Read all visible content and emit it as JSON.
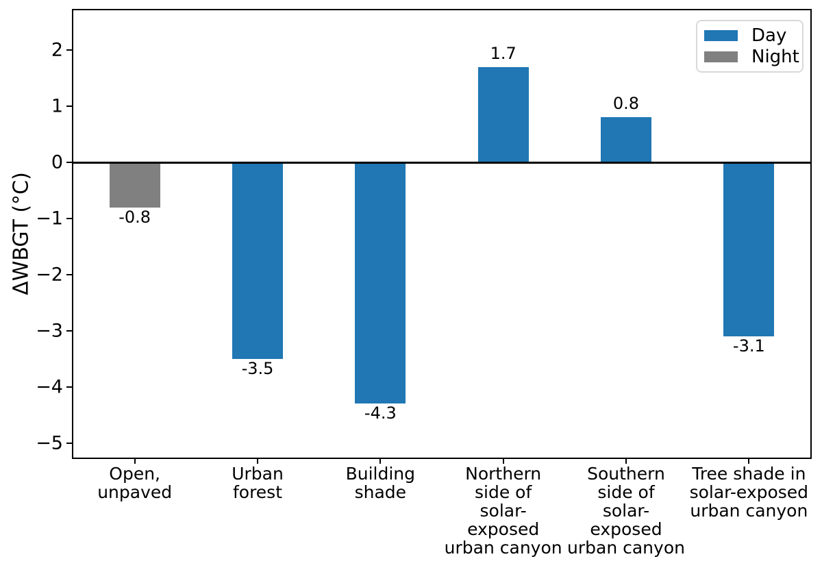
{
  "chart_data": {
    "type": "bar",
    "title": "",
    "xlabel": "",
    "ylabel": "ΔWBGT (°C)",
    "ylim": [
      -5.26,
      2.71
    ],
    "yticks": [
      2,
      1,
      0,
      -1,
      -2,
      -3,
      -4,
      -5
    ],
    "ytick_labels": [
      "2",
      "1",
      "0",
      "−1",
      "−2",
      "−3",
      "−4",
      "−5"
    ],
    "grid": false,
    "zero_line": true,
    "categories": [
      [
        "Open,",
        "unpaved"
      ],
      [
        "Urban",
        "forest"
      ],
      [
        "Building",
        "shade"
      ],
      [
        "Northern",
        "side of",
        "solar-",
        "exposed",
        "urban canyon"
      ],
      [
        "Southern",
        "side of",
        "solar-",
        "exposed",
        "urban canyon"
      ],
      [
        "Tree shade in",
        "solar-exposed",
        "urban canyon"
      ]
    ],
    "bars": [
      {
        "value": -0.8,
        "label": "-0.8",
        "series": "Night"
      },
      {
        "value": -3.5,
        "label": "-3.5",
        "series": "Day"
      },
      {
        "value": -4.3,
        "label": "-4.3",
        "series": "Day"
      },
      {
        "value": 1.7,
        "label": "1.7",
        "series": "Day"
      },
      {
        "value": 0.8,
        "label": "0.8",
        "series": "Day"
      },
      {
        "value": -3.1,
        "label": "-3.1",
        "series": "Day"
      }
    ],
    "series": [
      {
        "name": "Day",
        "color": "#2077b4"
      },
      {
        "name": "Night",
        "color": "#808080"
      }
    ],
    "legend": {
      "position": "upper right",
      "entries": [
        "Day",
        "Night"
      ]
    }
  }
}
